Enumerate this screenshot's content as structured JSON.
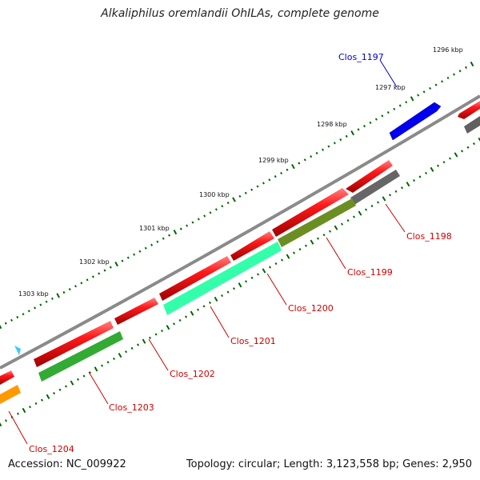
{
  "title": "Alkaliphilus oremlandii OhILAs, complete genome",
  "accession": "Accession: NC_009922",
  "summary": "Topology: circular; Length: 3,123,558 bp; Genes: 2,950",
  "kbp_labels": [
    "1296 kbp",
    "1297 kbp",
    "1298 kbp",
    "1299 kbp",
    "1300 kbp",
    "1301 kbp",
    "1302 kbp",
    "1303 kbp"
  ],
  "genes": [
    {
      "label": "Clos_1197",
      "color": "#0000cc"
    },
    {
      "label": "Clos_1198",
      "color": "#cc0000"
    },
    {
      "label": "Clos_1199",
      "color": "#cc0000"
    },
    {
      "label": "Clos_1200",
      "color": "#cc0000"
    },
    {
      "label": "Clos_1201",
      "color": "#cc0000"
    },
    {
      "label": "Clos_1202",
      "color": "#cc0000"
    },
    {
      "label": "Clos_1203",
      "color": "#cc0000"
    },
    {
      "label": "Clos_1204",
      "color": "#cc0000"
    }
  ],
  "colors": {
    "backbone": "#808080",
    "cds": "#ff0000",
    "forward_blue": "#0000ff",
    "tick": "#006600",
    "cog_gray": "#606060",
    "cog_olive": "#6b8e23",
    "cog_teal": "#33ffaa",
    "cog_green": "#33aa33",
    "cog_orange": "#ff9900",
    "cog_cyan": "#33ccff"
  }
}
